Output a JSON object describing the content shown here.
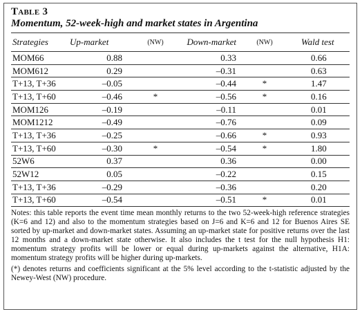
{
  "table_label": "Table 3",
  "title": "Momentum, 52-week-high and market states in Argentina",
  "table": {
    "header": [
      "Strategies",
      "Up-market",
      "(NW)",
      "Down-market",
      "(NW)",
      "Wald test"
    ],
    "rows": [
      [
        "MOM66",
        "0.88",
        null,
        "0.33",
        null,
        "0.66"
      ],
      [
        "MOM612",
        "0.29",
        null,
        "–0.31",
        null,
        "0.63"
      ],
      [
        "T+13, T+36",
        "–0.05",
        null,
        "–0.44",
        "*",
        "1.47"
      ],
      [
        "T+13, T+60",
        "–0.46",
        "*",
        "–0.56",
        "*",
        "0.16"
      ],
      [
        "MOM126",
        "–0.19",
        null,
        "–0.11",
        null,
        "0.01"
      ],
      [
        "MOM1212",
        "–0.49",
        null,
        "–0.76",
        null,
        "0.09"
      ],
      [
        "T+13, T+36",
        "–0.25",
        null,
        "–0.66",
        "*",
        "0.93"
      ],
      [
        "T+13, T+60",
        "–0.30",
        "*",
        "–0.54",
        "*",
        "1.80"
      ],
      [
        "52W6",
        "0.37",
        null,
        "0.36",
        null,
        "0.00"
      ],
      [
        "52W12",
        "0.05",
        null,
        "–0.22",
        null,
        "0.15"
      ],
      [
        "T+13, T+36",
        "–0.29",
        null,
        "–0.36",
        null,
        "0.20"
      ],
      [
        "T+13, T+60",
        "–0.54",
        null,
        "–0.51",
        "*",
        "0.01"
      ]
    ]
  },
  "notes": [
    "Notes: this table reports the event time mean monthly returns to the two 52-week-high reference strategies (K=6 and 12) and also to the momentum strategies based on J=6 and K=6 and 12 for Buenos Aires SE sorted by up-market and down-market states. Assuming an up-market state for positive returns over the last 12 months and a down-market state otherwise. It also includes the t test for the null hypothesis H1: momentum strategy profits will be lower or equal during up-markets against the alternative, H1A: momentum strategy profits will be higher during up-markets.",
    "(*) denotes returns and coefficients significant at the 5% level according to the t-statistic adjusted by the Newey-West (NW) procedure."
  ]
}
